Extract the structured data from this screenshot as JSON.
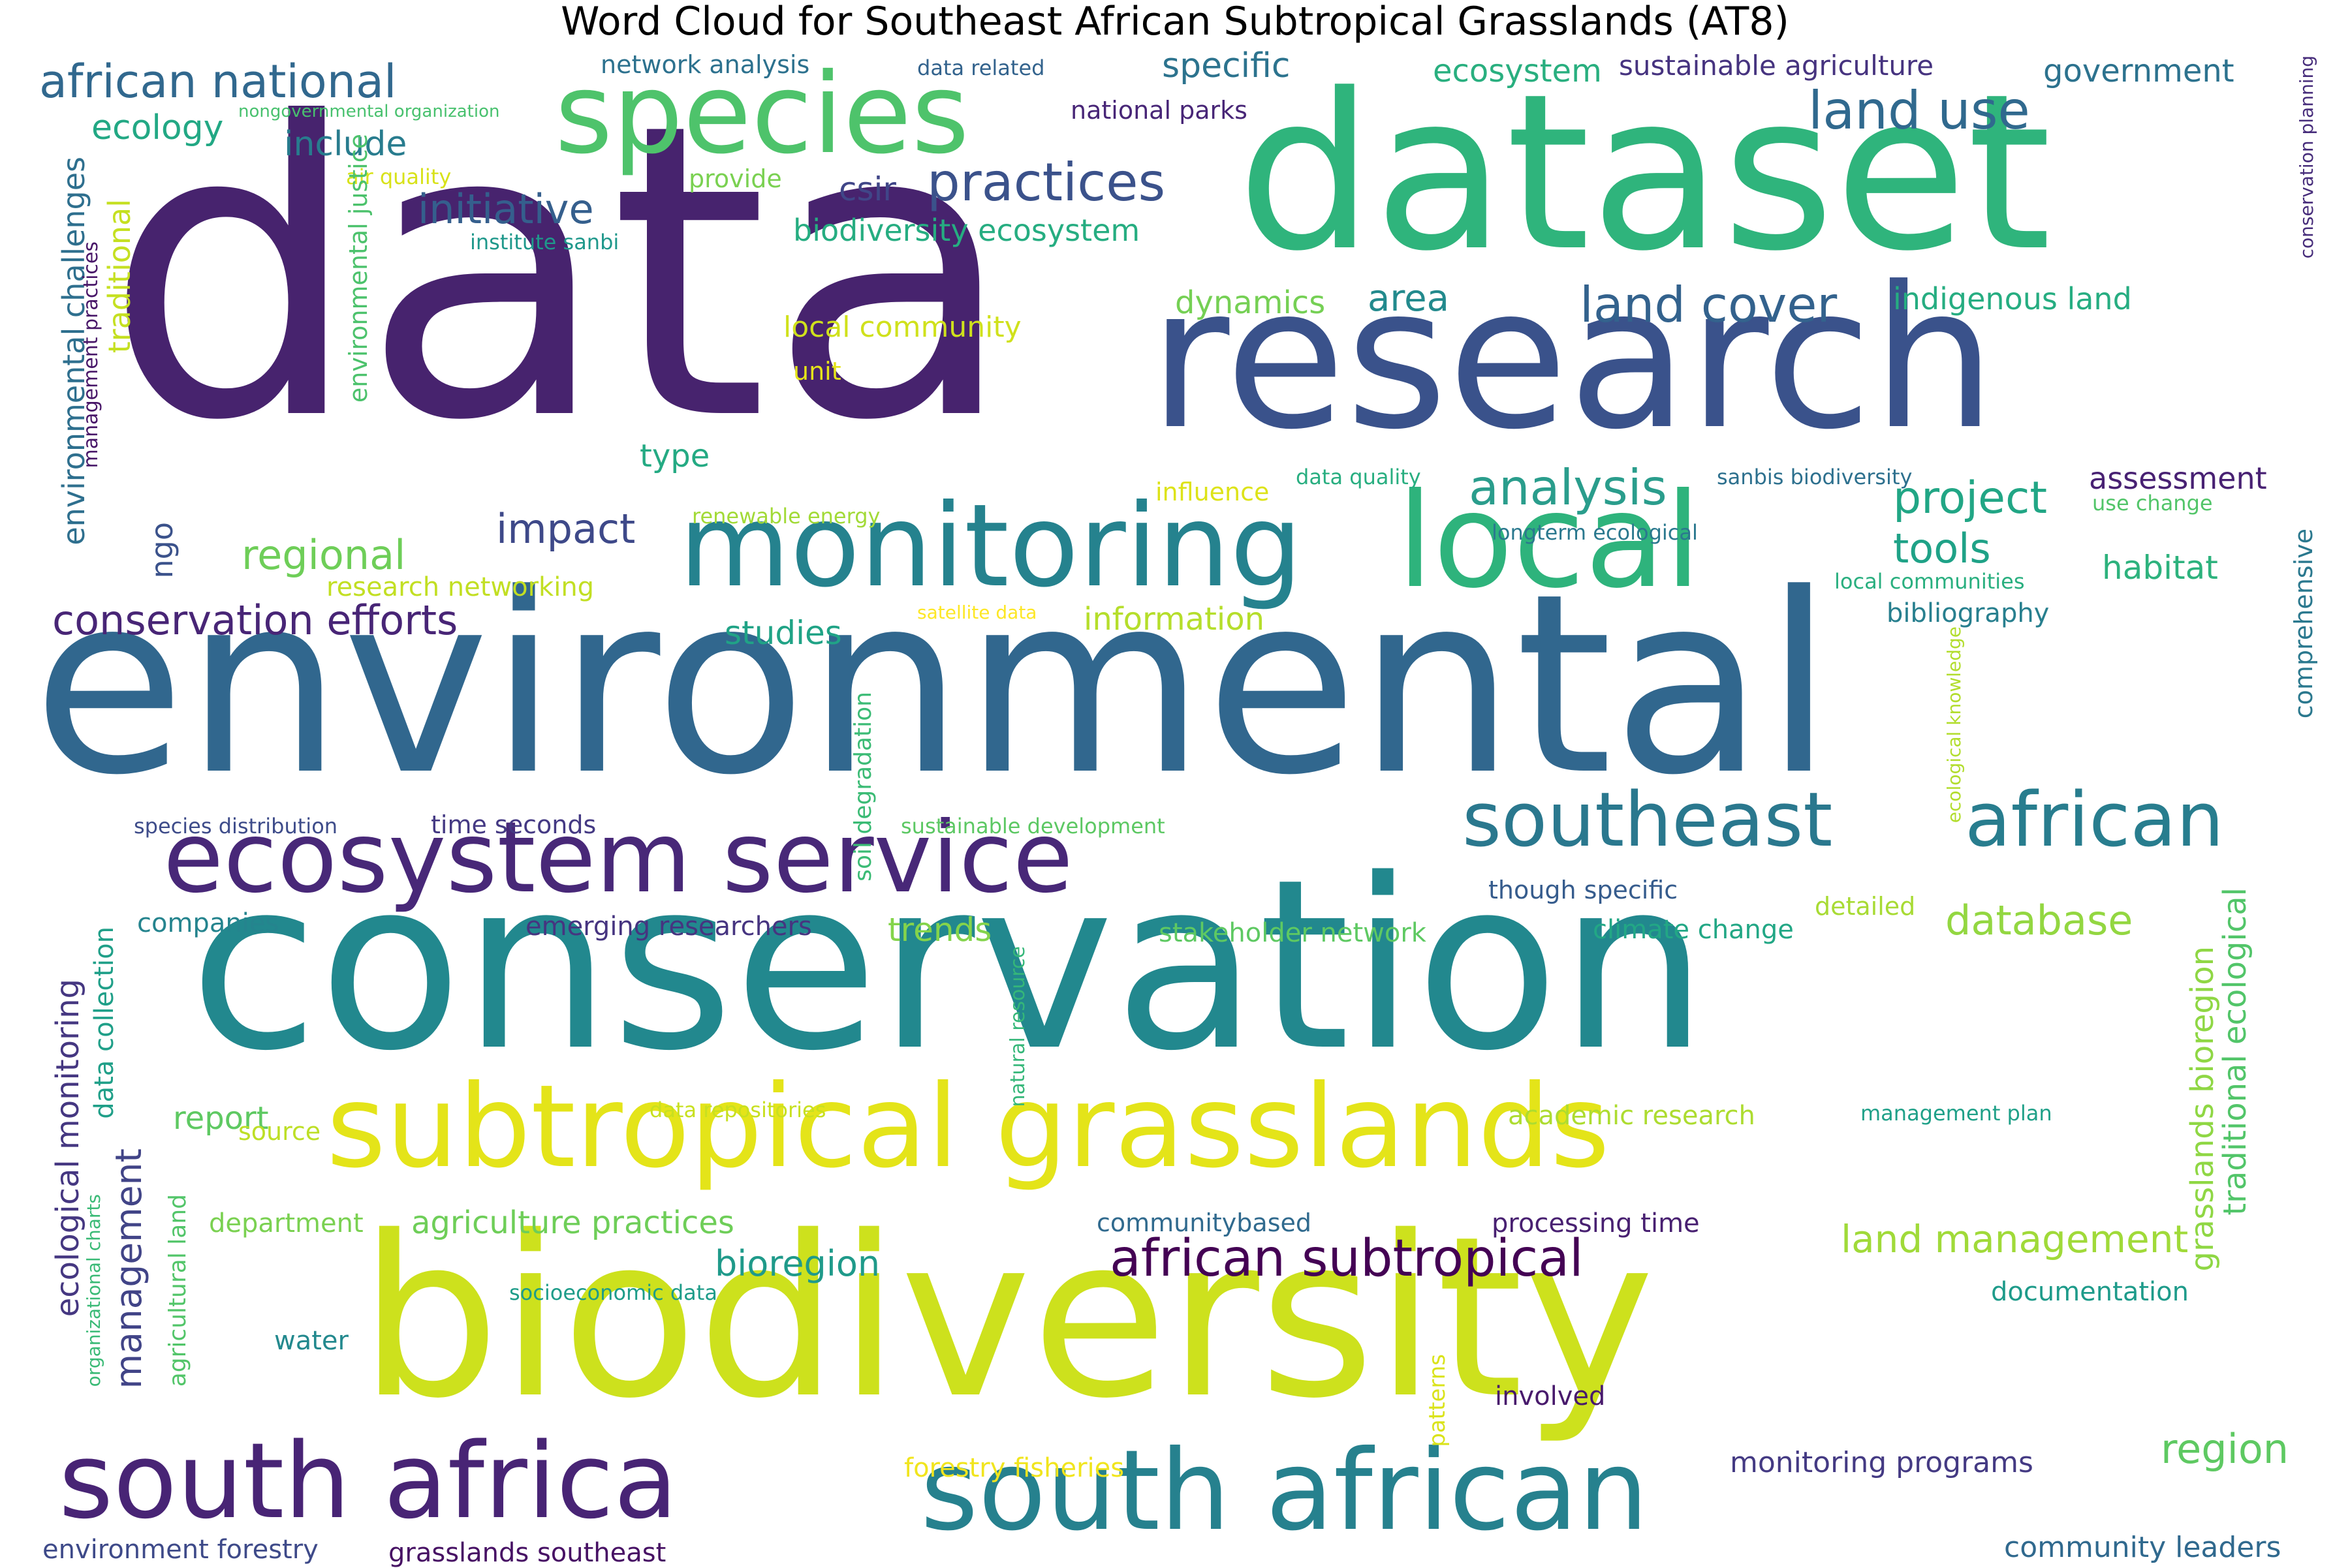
{
  "title": "Word Cloud for Southeast African Subtropical Grasslands (AT8)",
  "words": [
    {
      "text": "data",
      "color": "#47236e"
    },
    {
      "text": "dataset",
      "color": "#2fb47c"
    },
    {
      "text": "research",
      "color": "#3a528b"
    },
    {
      "text": "environmental",
      "color": "#31678e"
    },
    {
      "text": "conservation",
      "color": "#22888e"
    },
    {
      "text": "biodiversity",
      "color": "#cde11d"
    },
    {
      "text": "species",
      "color": "#4ec36b"
    },
    {
      "text": "monitoring",
      "color": "#25828e"
    },
    {
      "text": "local",
      "color": "#2eb37c"
    },
    {
      "text": "ecosystem service",
      "color": "#482878"
    },
    {
      "text": "subtropical grasslands",
      "color": "#e4e419"
    },
    {
      "text": "south african",
      "color": "#26818e"
    },
    {
      "text": "south africa",
      "color": "#482475"
    },
    {
      "text": "southeast",
      "color": "#2a788e"
    },
    {
      "text": "african",
      "color": "#287d8e"
    },
    {
      "text": "african subtropical",
      "color": "#440154"
    },
    {
      "text": "african national",
      "color": "#31688e"
    },
    {
      "text": "land use",
      "color": "#30698e"
    },
    {
      "text": "land cover",
      "color": "#33628d"
    },
    {
      "text": "practices",
      "color": "#3b528b"
    },
    {
      "text": "analysis",
      "color": "#2a9d8c"
    },
    {
      "text": "project",
      "color": "#21a685"
    },
    {
      "text": "conservation efforts",
      "color": "#482576"
    },
    {
      "text": "initiative",
      "color": "#355f8d"
    },
    {
      "text": "impact",
      "color": "#3e4989"
    },
    {
      "text": "regional",
      "color": "#6ece58"
    },
    {
      "text": "tools",
      "color": "#1fa287"
    },
    {
      "text": "database",
      "color": "#93d741"
    },
    {
      "text": "land management",
      "color": "#a0da39"
    },
    {
      "text": "management",
      "color": "#414487"
    },
    {
      "text": "ecological monitoring",
      "color": "#453781"
    },
    {
      "text": "region",
      "color": "#5ec962"
    },
    {
      "text": "grasslands bioregion",
      "color": "#8fd744"
    },
    {
      "text": "traditional ecological",
      "color": "#52c569"
    },
    {
      "text": "bioregion",
      "color": "#1f9a8a"
    },
    {
      "text": "agriculture practices",
      "color": "#6ece58"
    },
    {
      "text": "specific",
      "color": "#2c738e"
    },
    {
      "text": "ecosystem",
      "color": "#29af7f"
    },
    {
      "text": "sustainable agriculture",
      "color": "#46337f"
    },
    {
      "text": "government",
      "color": "#2c728e"
    },
    {
      "text": "ecology",
      "color": "#22a884"
    },
    {
      "text": "include",
      "color": "#287c8e"
    },
    {
      "text": "csir",
      "color": "#404688"
    },
    {
      "text": "biodiversity ecosystem",
      "color": "#26ad81"
    },
    {
      "text": "area",
      "color": "#238a8d"
    },
    {
      "text": "dynamics",
      "color": "#75d054"
    },
    {
      "text": "indigenous land",
      "color": "#26ad81"
    },
    {
      "text": "assessment",
      "color": "#482173"
    },
    {
      "text": "habitat",
      "color": "#2db27d"
    },
    {
      "text": "information",
      "color": "#b5de2b"
    },
    {
      "text": "studies",
      "color": "#20a386"
    },
    {
      "text": "type",
      "color": "#24aa83"
    },
    {
      "text": "bibliography",
      "color": "#277f8e"
    },
    {
      "text": "trends",
      "color": "#84d44b"
    },
    {
      "text": "report",
      "color": "#5ec962"
    },
    {
      "text": "network analysis",
      "color": "#2c718e"
    },
    {
      "text": "data related",
      "color": "#33638d"
    },
    {
      "text": "national parks",
      "color": "#482677"
    },
    {
      "text": "nongovernmental organization",
      "color": "#48c16e"
    },
    {
      "text": "air quality",
      "color": "#d8e219"
    },
    {
      "text": "provide",
      "color": "#7ad151"
    },
    {
      "text": "institute sanbi",
      "color": "#1f988b"
    },
    {
      "text": "local community",
      "color": "#d0e11c"
    },
    {
      "text": "unit",
      "color": "#e5e419"
    },
    {
      "text": "influence",
      "color": "#dde318"
    },
    {
      "text": "data quality",
      "color": "#28ae80"
    },
    {
      "text": "sanbis biodiversity",
      "color": "#2d708e"
    },
    {
      "text": "use change",
      "color": "#52c569"
    },
    {
      "text": "renewable energy",
      "color": "#a2da37"
    },
    {
      "text": "longterm ecological",
      "color": "#2a788e"
    },
    {
      "text": "research networking",
      "color": "#c2df23"
    },
    {
      "text": "satellite data",
      "color": "#fde725"
    },
    {
      "text": "local communities",
      "color": "#29af7f"
    },
    {
      "text": "comprehensive",
      "color": "#2a788e"
    },
    {
      "text": "conservation planning",
      "color": "#472d7b"
    },
    {
      "text": "ecological knowledge",
      "color": "#b2dd2d"
    },
    {
      "text": "environmental challenges",
      "color": "#2e6f8e"
    },
    {
      "text": "traditional",
      "color": "#c5e021"
    },
    {
      "text": "management practices",
      "color": "#481668"
    },
    {
      "text": "environmental justice",
      "color": "#4cc26c"
    },
    {
      "text": "ngo",
      "color": "#3b528b"
    },
    {
      "text": "species distribution",
      "color": "#3e4c8a"
    },
    {
      "text": "time seconds",
      "color": "#443983"
    },
    {
      "text": "sustainable development",
      "color": "#5cc863"
    },
    {
      "text": "soil degradation",
      "color": "#3bbb75"
    },
    {
      "text": "though specific",
      "color": "#365c8d"
    },
    {
      "text": "detailed",
      "color": "#a8db34"
    },
    {
      "text": "climate change",
      "color": "#22a785"
    },
    {
      "text": "stakeholder network",
      "color": "#5ec962"
    },
    {
      "text": "emerging researchers",
      "color": "#463480"
    },
    {
      "text": "companies",
      "color": "#25848e"
    },
    {
      "text": "data collection",
      "color": "#1f9f88"
    },
    {
      "text": "natural resource",
      "color": "#35b779"
    },
    {
      "text": "data repositories",
      "color": "#c8e020"
    },
    {
      "text": "academic research",
      "color": "#addc30"
    },
    {
      "text": "management plan",
      "color": "#1fa088"
    },
    {
      "text": "source",
      "color": "#bddf26"
    },
    {
      "text": "department",
      "color": "#7ad151"
    },
    {
      "text": "communitybased",
      "color": "#306a8e"
    },
    {
      "text": "processing time",
      "color": "#482071"
    },
    {
      "text": "documentation",
      "color": "#1e9b8a"
    },
    {
      "text": "organizational charts",
      "color": "#3aba76"
    },
    {
      "text": "agricultural land",
      "color": "#52c569"
    },
    {
      "text": "socioeconomic data",
      "color": "#1e9c89"
    },
    {
      "text": "water",
      "color": "#23898e"
    },
    {
      "text": "patterns",
      "color": "#dae319"
    },
    {
      "text": "involved",
      "color": "#481a6c"
    },
    {
      "text": "forestry fisheries",
      "color": "#f1e51d"
    },
    {
      "text": "monitoring programs",
      "color": "#443a83"
    },
    {
      "text": "environment forestry",
      "color": "#3e4a89"
    },
    {
      "text": "grasslands southeast",
      "color": "#471164"
    },
    {
      "text": "community leaders",
      "color": "#30698e"
    }
  ]
}
